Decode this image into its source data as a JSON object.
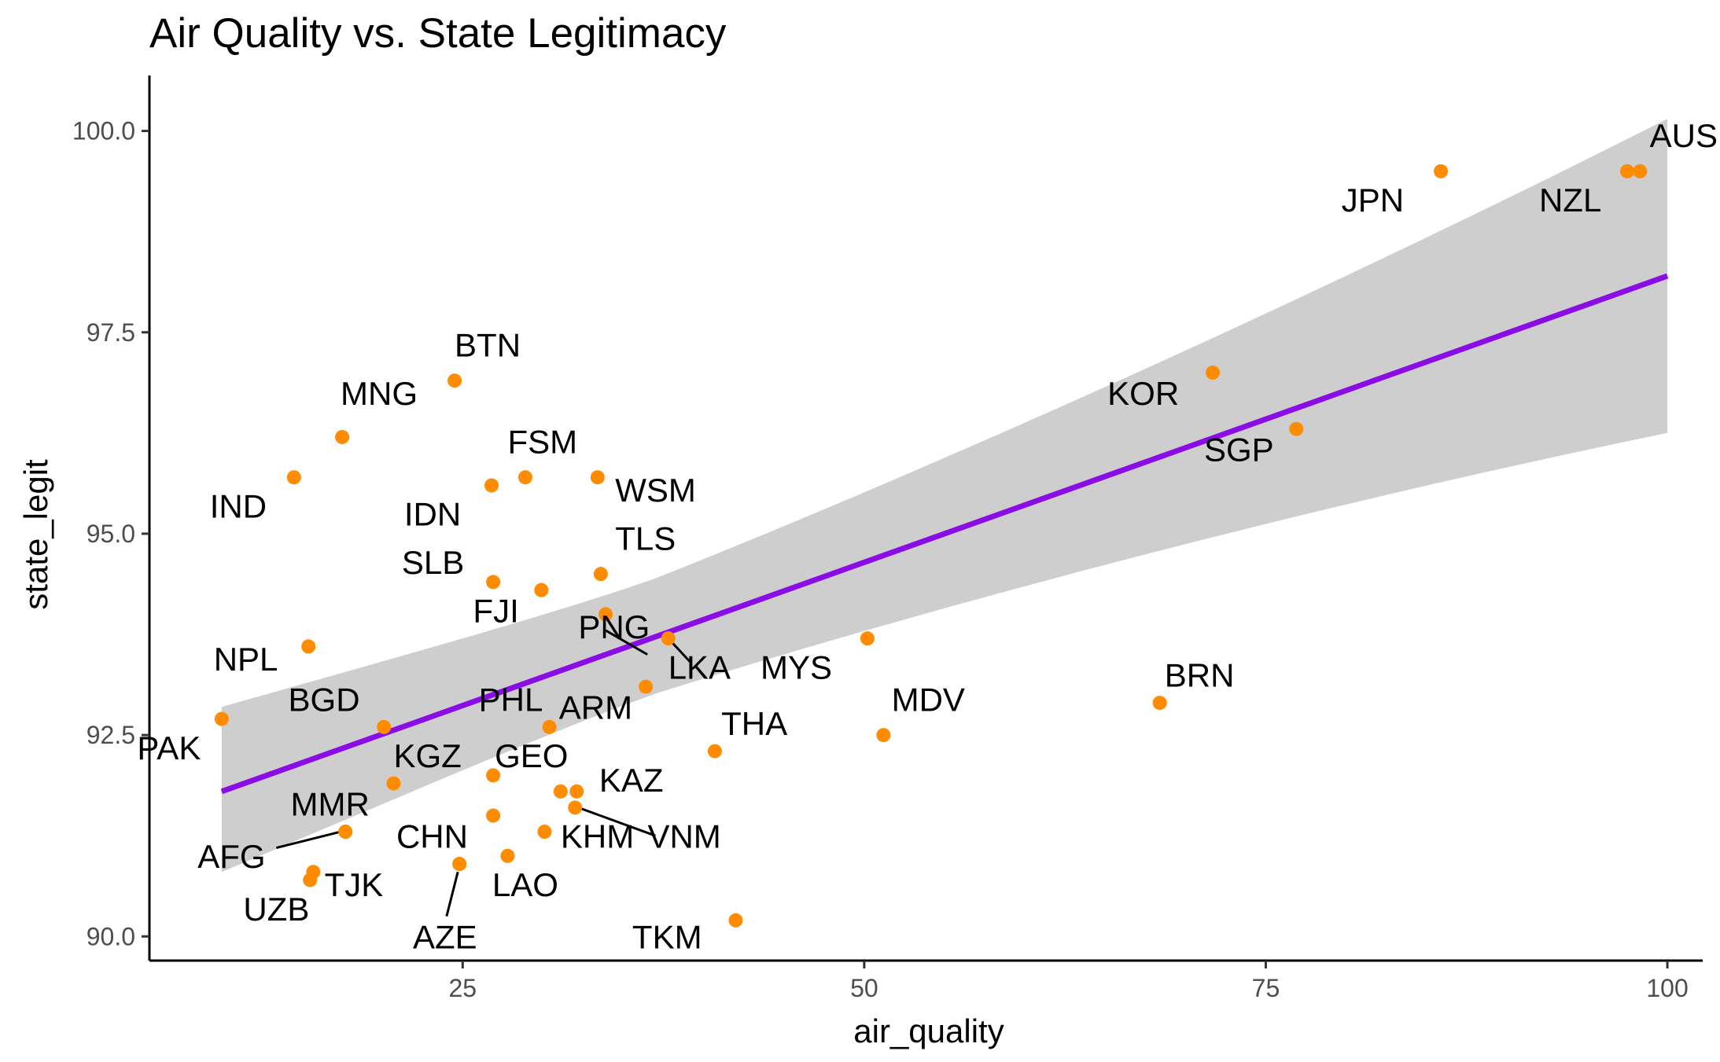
{
  "chart_data": {
    "type": "scatter",
    "title": "Air Quality vs. State Legitimacy",
    "xlabel": "air_quality",
    "ylabel": "state_legit",
    "xlim": [
      5.5,
      102.2
    ],
    "ylim": [
      89.7,
      100.65
    ],
    "x_ticks": [
      25,
      50,
      75,
      100
    ],
    "x_tick_labels": [
      "25",
      "50",
      "75",
      "100"
    ],
    "y_ticks": [
      90.0,
      92.5,
      95.0,
      97.5,
      100.0
    ],
    "y_tick_labels": [
      "90.0",
      "92.5",
      "95.0",
      "97.5",
      "100.0"
    ],
    "grid": false,
    "legend": "none",
    "colors": {
      "points": "#ff8c00",
      "fit_line": "#8a0de6",
      "confidence_band": "#bebebe",
      "axis": "#000000",
      "tick_text": "#4d4d4d",
      "label_segment": "#000000"
    },
    "fit": {
      "method": "lm",
      "x": [
        10,
        100
      ],
      "y": [
        91.8,
        98.2
      ],
      "ci_upper": [
        92.85,
        100.15
      ],
      "ci_lower": [
        90.8,
        96.25
      ]
    },
    "points": [
      {
        "label": "AUS",
        "x": 98.3,
        "y": 99.5
      },
      {
        "label": "NZL",
        "x": 97.5,
        "y": 99.5
      },
      {
        "label": "JPN",
        "x": 85.9,
        "y": 99.5
      },
      {
        "label": "KOR",
        "x": 71.7,
        "y": 97.0
      },
      {
        "label": "SGP",
        "x": 76.9,
        "y": 96.3
      },
      {
        "label": "BRN",
        "x": 68.4,
        "y": 92.9
      },
      {
        "label": "MYS",
        "x": 50.2,
        "y": 93.7
      },
      {
        "label": "MDV",
        "x": 51.2,
        "y": 92.5
      },
      {
        "label": "THA",
        "x": 40.7,
        "y": 92.3
      },
      {
        "label": "TKM",
        "x": 42.0,
        "y": 90.2
      },
      {
        "label": "BTN",
        "x": 24.5,
        "y": 96.9
      },
      {
        "label": "MNG",
        "x": 17.5,
        "y": 96.2
      },
      {
        "label": "IND",
        "x": 14.5,
        "y": 95.7
      },
      {
        "label": "FSM",
        "x": 28.9,
        "y": 95.7
      },
      {
        "label": "IDN",
        "x": 26.8,
        "y": 95.6
      },
      {
        "label": "WSM",
        "x": 33.4,
        "y": 95.7
      },
      {
        "label": "TLS",
        "x": 33.6,
        "y": 94.5
      },
      {
        "label": "SLB",
        "x": 26.9,
        "y": 94.4
      },
      {
        "label": "FJI",
        "x": 29.9,
        "y": 94.3
      },
      {
        "label": "PNG",
        "x": 33.9,
        "y": 94.0
      },
      {
        "label": "LKA",
        "x": 37.8,
        "y": 93.7
      },
      {
        "label": "NPL",
        "x": 15.4,
        "y": 93.6
      },
      {
        "label": "PAK",
        "x": 10.0,
        "y": 92.7
      },
      {
        "label": "BGD",
        "x": 20.1,
        "y": 92.6
      },
      {
        "label": "PHL",
        "x": 36.4,
        "y": 93.1
      },
      {
        "label": "ARM",
        "x": 30.4,
        "y": 92.6
      },
      {
        "label": "KGZ",
        "x": 20.7,
        "y": 91.9
      },
      {
        "label": "GEO",
        "x": 26.9,
        "y": 92.0
      },
      {
        "label": "KAZ",
        "x": 32.1,
        "y": 91.8
      },
      {
        "label": "",
        "x": 31.1,
        "y": 91.8
      },
      {
        "label": "VNM",
        "x": 32.0,
        "y": 91.6
      },
      {
        "label": "",
        "x": 26.9,
        "y": 91.5
      },
      {
        "label": "MMR",
        "x": 17.7,
        "y": 91.3
      },
      {
        "label": "AFG",
        "x": 17.7,
        "y": 91.3
      },
      {
        "label": "KHM",
        "x": 30.1,
        "y": 91.3
      },
      {
        "label": "LAO",
        "x": 27.8,
        "y": 91.0
      },
      {
        "label": "CHN",
        "x": 24.8,
        "y": 90.9
      },
      {
        "label": "AZE",
        "x": 24.8,
        "y": 90.9
      },
      {
        "label": "TJK",
        "x": 15.7,
        "y": 90.8
      },
      {
        "label": "UZB",
        "x": 15.5,
        "y": 90.7
      }
    ],
    "labels": [
      {
        "text": "AUS",
        "x": 98.9,
        "y": 99.8,
        "anchor": "start"
      },
      {
        "text": "NZL",
        "x": 95.9,
        "y": 99.0,
        "anchor": "end"
      },
      {
        "text": "JPN",
        "x": 83.6,
        "y": 99.0,
        "anchor": "end"
      },
      {
        "text": "KOR",
        "x": 69.6,
        "y": 96.6,
        "anchor": "end"
      },
      {
        "text": "SGP",
        "x": 75.5,
        "y": 95.9,
        "anchor": "end"
      },
      {
        "text": "BRN",
        "x": 68.7,
        "y": 93.1,
        "anchor": "start"
      },
      {
        "text": "MYS",
        "x": 48.0,
        "y": 93.2,
        "anchor": "end"
      },
      {
        "text": "MDV",
        "x": 51.7,
        "y": 92.8,
        "anchor": "start"
      },
      {
        "text": "THA",
        "x": 41.1,
        "y": 92.5,
        "anchor": "start"
      },
      {
        "text": "TKM",
        "x": 39.9,
        "y": 89.85,
        "anchor": "end"
      },
      {
        "text": "BTN",
        "x": 24.5,
        "y": 97.2,
        "anchor": "start"
      },
      {
        "text": "MNG",
        "x": 17.4,
        "y": 96.6,
        "anchor": "start"
      },
      {
        "text": "IND",
        "x": 12.8,
        "y": 95.2,
        "anchor": "end"
      },
      {
        "text": "FSM",
        "x": 27.8,
        "y": 96.0,
        "anchor": "start"
      },
      {
        "text": "IDN",
        "x": 24.9,
        "y": 95.1,
        "anchor": "end"
      },
      {
        "text": "WSM",
        "x": 34.5,
        "y": 95.4,
        "anchor": "start"
      },
      {
        "text": "TLS",
        "x": 34.5,
        "y": 94.8,
        "anchor": "start"
      },
      {
        "text": "SLB",
        "x": 25.1,
        "y": 94.5,
        "anchor": "end"
      },
      {
        "text": "FJI",
        "x": 28.5,
        "y": 93.9,
        "anchor": "end"
      },
      {
        "text": "PNG",
        "x": 32.2,
        "y": 93.7,
        "anchor": "start"
      },
      {
        "text": "LKA",
        "x": 37.8,
        "y": 93.2,
        "anchor": "start"
      },
      {
        "text": "NPL",
        "x": 13.5,
        "y": 93.3,
        "anchor": "end"
      },
      {
        "text": "PAK",
        "x": 8.7,
        "y": 92.2,
        "anchor": "end"
      },
      {
        "text": "BGD",
        "x": 18.6,
        "y": 92.8,
        "anchor": "end"
      },
      {
        "text": "PHL",
        "x": 30.0,
        "y": 92.8,
        "anchor": "end"
      },
      {
        "text": "ARM",
        "x": 31.0,
        "y": 92.7,
        "anchor": "start"
      },
      {
        "text": "KGZ",
        "x": 20.7,
        "y": 92.1,
        "anchor": "start"
      },
      {
        "text": "GEO",
        "x": 27.0,
        "y": 92.1,
        "anchor": "start"
      },
      {
        "text": "KAZ",
        "x": 33.5,
        "y": 91.8,
        "anchor": "start"
      },
      {
        "text": "VNM",
        "x": 38.8,
        "y": 91.1,
        "anchor": "middle"
      },
      {
        "text": "MMR",
        "x": 19.2,
        "y": 91.5,
        "anchor": "end"
      },
      {
        "text": "AFG",
        "x": 8.5,
        "y": 90.85,
        "anchor": "start"
      },
      {
        "text": "KHM",
        "x": 31.1,
        "y": 91.1,
        "anchor": "start"
      },
      {
        "text": "LAO",
        "x": 28.9,
        "y": 90.5,
        "anchor": "middle"
      },
      {
        "text": "CHN",
        "x": 23.1,
        "y": 91.1,
        "anchor": "middle"
      },
      {
        "text": "AZE",
        "x": 23.9,
        "y": 89.85,
        "anchor": "middle"
      },
      {
        "text": "TJK",
        "x": 16.4,
        "y": 90.5,
        "anchor": "start"
      },
      {
        "text": "UZB",
        "x": 13.4,
        "y": 90.2,
        "anchor": "middle"
      }
    ],
    "segments": [
      {
        "from": [
          33.9,
          93.8
        ],
        "to": [
          36.5,
          93.5
        ]
      },
      {
        "from": [
          37.8,
          93.7
        ],
        "to": [
          39.2,
          93.4
        ]
      },
      {
        "from": [
          32.2,
          91.6
        ],
        "to": [
          37.0,
          91.25
        ]
      },
      {
        "from": [
          17.4,
          91.3
        ],
        "to": [
          13.4,
          91.1
        ]
      },
      {
        "from": [
          24.7,
          90.8
        ],
        "to": [
          24.0,
          90.25
        ]
      }
    ]
  }
}
